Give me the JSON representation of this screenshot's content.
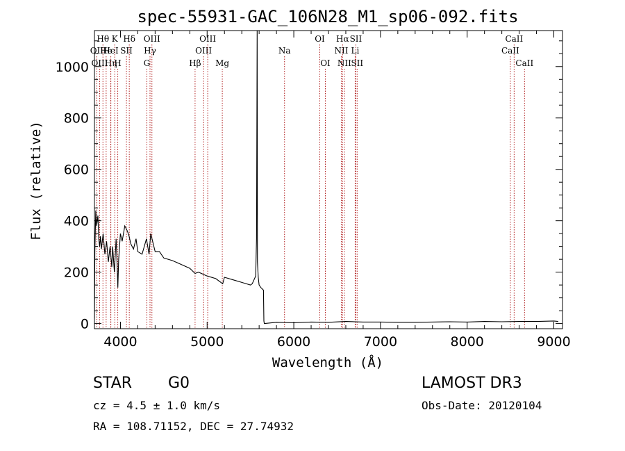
{
  "chart_data": {
    "type": "line",
    "title": "spec-55931-GAC_106N28_M1_sp06-092.fits",
    "xlabel": "Wavelength (Å)",
    "ylabel": "Flux (relative)",
    "xlim": [
      3700,
      9100
    ],
    "ylim": [
      -20,
      1140
    ],
    "xticks": [
      4000,
      5000,
      6000,
      7000,
      8000,
      9000
    ],
    "yticks": [
      0,
      200,
      400,
      600,
      800,
      1000
    ],
    "series": [
      {
        "name": "flux",
        "x": [
          3700,
          3705,
          3715,
          3725,
          3740,
          3750,
          3760,
          3770,
          3780,
          3800,
          3820,
          3840,
          3860,
          3880,
          3900,
          3910,
          3930,
          3950,
          3960,
          3970,
          3980,
          4000,
          4020,
          4050,
          4080,
          4100,
          4120,
          4150,
          4180,
          4200,
          4250,
          4300,
          4330,
          4350,
          4400,
          4450,
          4500,
          4600,
          4700,
          4800,
          4861,
          4900,
          5000,
          5100,
          5180,
          5200,
          5300,
          5400,
          5500,
          5520,
          5560,
          5570,
          5577,
          5580,
          5590,
          5600,
          5620,
          5650,
          5655,
          5660,
          5800,
          6000,
          6200,
          6400,
          6600,
          6800,
          7000,
          7200,
          7400,
          7600,
          7800,
          8000,
          8200,
          8400,
          8600,
          8800,
          9000,
          9050
        ],
        "values": [
          20,
          280,
          440,
          380,
          420,
          330,
          300,
          340,
          290,
          350,
          270,
          320,
          240,
          300,
          220,
          300,
          200,
          330,
          240,
          140,
          250,
          350,
          320,
          380,
          360,
          340,
          310,
          290,
          330,
          280,
          270,
          330,
          270,
          350,
          280,
          280,
          255,
          245,
          230,
          215,
          195,
          200,
          185,
          175,
          155,
          180,
          170,
          160,
          150,
          155,
          185,
          330,
          1140,
          240,
          180,
          150,
          140,
          130,
          10,
          0,
          5,
          3,
          6,
          5,
          8,
          6,
          6,
          5,
          5,
          6,
          7,
          6,
          8,
          7,
          8,
          8,
          10,
          8
        ]
      }
    ],
    "line_markers": [
      {
        "label": "Hθ",
        "wave": 3798,
        "row": 1
      },
      {
        "label": "OII",
        "wave": 3727,
        "row": 2
      },
      {
        "label": "OIII",
        "wave": 3760,
        "row": 3
      },
      {
        "label": "He",
        "wave": 3835,
        "row": 2
      },
      {
        "label": "Hη",
        "wave": 3889,
        "row": 3
      },
      {
        "label": "K",
        "wave": 3934,
        "row": 1
      },
      {
        "label": "HeI",
        "wave": 3889,
        "row": 2
      },
      {
        "label": "SII",
        "wave": 4069,
        "row": 2
      },
      {
        "label": "H",
        "wave": 3969,
        "row": 3
      },
      {
        "label": "Hδ",
        "wave": 4102,
        "row": 1
      },
      {
        "label": "OIII",
        "wave": 4363,
        "row": 1
      },
      {
        "label": "Hγ",
        "wave": 4341,
        "row": 2
      },
      {
        "label": "G",
        "wave": 4305,
        "row": 3
      },
      {
        "label": "Hβ",
        "wave": 4861,
        "row": 3
      },
      {
        "label": "OIII",
        "wave": 4959,
        "row": 2
      },
      {
        "label": "OIII",
        "wave": 5007,
        "row": 1
      },
      {
        "label": "Mg",
        "wave": 5175,
        "row": 3
      },
      {
        "label": "Na",
        "wave": 5893,
        "row": 2
      },
      {
        "label": "OI",
        "wave": 6300,
        "row": 1
      },
      {
        "label": "OI",
        "wave": 6364,
        "row": 3
      },
      {
        "label": "Hα",
        "wave": 6563,
        "row": 1
      },
      {
        "label": "NII",
        "wave": 6548,
        "row": 2
      },
      {
        "label": "NII",
        "wave": 6583,
        "row": 3
      },
      {
        "label": "SII",
        "wave": 6716,
        "row": 1
      },
      {
        "label": "Li",
        "wave": 6708,
        "row": 2
      },
      {
        "label": "SII",
        "wave": 6731,
        "row": 3
      },
      {
        "label": "CaII",
        "wave": 8542,
        "row": 1
      },
      {
        "label": "CaII",
        "wave": 8498,
        "row": 2
      },
      {
        "label": "CaII",
        "wave": 8662,
        "row": 3
      }
    ]
  },
  "info": {
    "object_class": "STAR",
    "subclass": "G0",
    "survey": "LAMOST DR3",
    "cz": "cz = 4.5 ± 1.0 km/s",
    "obs_date": "Obs-Date: 20120104",
    "coords": "RA = 108.71152, DEC =  27.74932"
  }
}
